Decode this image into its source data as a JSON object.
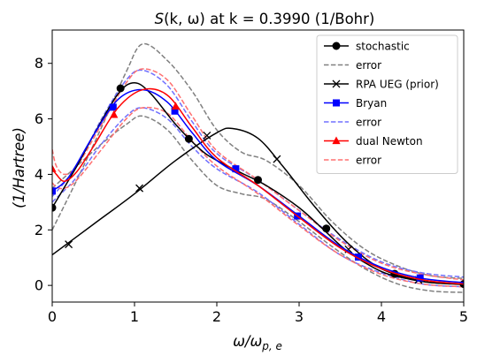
{
  "chart_data": {
    "type": "line",
    "title": "S(k, ω) at k = 0.3990 (1/Bohr)",
    "title_parts": {
      "s": "S",
      "args": "(k, ω)",
      "rest": " at k = 0.3990 (1/Bohr)"
    },
    "xlabel_parts": {
      "omega": "ω",
      "slash": "/ω",
      "sub": "p, e"
    },
    "ylabel": "(1/Hartree)",
    "xlim": [
      0,
      5
    ],
    "ylim": [
      -0.6,
      9.2
    ],
    "xticks": [
      "0",
      "1",
      "2",
      "3",
      "4",
      "5"
    ],
    "yticks": [
      "0",
      "2",
      "4",
      "6",
      "8"
    ],
    "legend_position": "top-right",
    "grid": false,
    "series": [
      {
        "name": "stochastic",
        "color": "#000000",
        "style": "solid",
        "marker": "circle",
        "x": [
          0,
          0.3,
          0.5,
          0.8,
          1.0,
          1.2,
          1.5,
          1.8,
          2.0,
          2.3,
          2.6,
          3.0,
          3.3,
          3.6,
          4.0,
          4.3,
          4.6,
          5.0
        ],
        "y": [
          2.8,
          4.3,
          5.4,
          6.9,
          7.3,
          6.9,
          5.8,
          4.9,
          4.5,
          4.05,
          3.6,
          2.8,
          2.0,
          1.2,
          0.5,
          0.25,
          0.1,
          0.05
        ],
        "markers_x": [
          0,
          0.83,
          1.66,
          2.5,
          3.33,
          4.16,
          5.0
        ],
        "markers_y": [
          2.8,
          7.1,
          5.28,
          3.8,
          2.05,
          0.42,
          0.05
        ]
      },
      {
        "name": "error",
        "color": "#808080",
        "style": "dashed",
        "marker": "none",
        "x": [
          0,
          0.3,
          0.6,
          0.9,
          1.1,
          1.4,
          1.7,
          2.0,
          2.3,
          2.6,
          3.0,
          3.4,
          3.8,
          4.2,
          4.6,
          5.0
        ],
        "y": [
          2.0,
          3.8,
          5.7,
          7.7,
          8.7,
          8.1,
          7.0,
          5.6,
          4.8,
          4.5,
          3.6,
          2.3,
          1.3,
          0.7,
          0.35,
          0.25
        ]
      },
      {
        "name": "",
        "color": "#808080",
        "style": "dashed",
        "marker": "none",
        "x": [
          0,
          0.3,
          0.6,
          0.9,
          1.1,
          1.4,
          1.7,
          2.0,
          2.3,
          2.6,
          3.0,
          3.4,
          3.8,
          4.2,
          4.6,
          5.0
        ],
        "y": [
          3.5,
          4.3,
          5.1,
          5.8,
          6.1,
          5.6,
          4.5,
          3.6,
          3.3,
          3.1,
          2.3,
          1.4,
          0.6,
          0.05,
          -0.2,
          -0.25
        ]
      },
      {
        "name": "RPA UEG (prior)",
        "color": "#000000",
        "style": "solid",
        "marker": "x",
        "x": [
          0,
          0.5,
          1.0,
          1.5,
          2.0,
          2.2,
          2.5,
          2.8,
          3.2,
          3.6,
          4.0,
          4.5,
          5.0
        ],
        "y": [
          1.1,
          2.2,
          3.3,
          4.5,
          5.5,
          5.65,
          5.3,
          4.3,
          2.8,
          1.5,
          0.6,
          0.15,
          0.03
        ],
        "markers_x": [
          0.2,
          1.06,
          1.88,
          2.73,
          3.6,
          4.45
        ],
        "markers_y": [
          1.48,
          3.5,
          5.4,
          4.55,
          1.3,
          0.2
        ]
      },
      {
        "name": "Bryan",
        "color": "#0000ff",
        "style": "solid",
        "marker": "square",
        "x": [
          0,
          0.2,
          0.5,
          0.8,
          1.1,
          1.4,
          1.7,
          2.0,
          2.5,
          3.0,
          3.5,
          4.0,
          4.5,
          5.0
        ],
        "y": [
          3.4,
          3.9,
          5.4,
          6.7,
          7.05,
          6.6,
          5.5,
          4.5,
          3.6,
          2.5,
          1.4,
          0.65,
          0.25,
          0.1
        ],
        "markers_x": [
          0,
          0.74,
          1.49,
          2.23,
          2.98,
          3.72,
          4.47
        ],
        "markers_y": [
          3.4,
          6.42,
          6.28,
          4.2,
          2.5,
          1.02,
          0.27
        ]
      },
      {
        "name": "error",
        "color": "#7070ff",
        "style": "dashed",
        "marker": "none",
        "x": [
          0,
          0.3,
          0.6,
          0.9,
          1.1,
          1.4,
          1.7,
          2.0,
          2.5,
          3.0,
          3.5,
          4.0,
          4.5,
          5.0
        ],
        "y": [
          3.2,
          4.3,
          6.0,
          7.4,
          7.75,
          7.2,
          5.9,
          4.75,
          3.8,
          2.7,
          1.65,
          0.85,
          0.45,
          0.3
        ]
      },
      {
        "name": "",
        "color": "#7070ff",
        "style": "dashed",
        "marker": "none",
        "x": [
          0,
          0.3,
          0.6,
          0.9,
          1.1,
          1.4,
          1.7,
          2.0,
          2.5,
          3.0,
          3.5,
          4.0,
          4.5,
          5.0
        ],
        "y": [
          3.0,
          3.9,
          5.1,
          6.1,
          6.4,
          6.0,
          5.0,
          4.2,
          3.35,
          2.2,
          1.1,
          0.45,
          0.05,
          -0.05
        ]
      },
      {
        "name": "dual Newton",
        "color": "#ff0000",
        "style": "solid",
        "marker": "triangle",
        "x": [
          0,
          0.05,
          0.15,
          0.3,
          0.5,
          0.8,
          1.1,
          1.4,
          1.7,
          2.0,
          2.5,
          3.0,
          3.5,
          4.0,
          4.5,
          5.0
        ],
        "y": [
          4.2,
          4.0,
          3.75,
          4.1,
          5.0,
          6.4,
          7.05,
          6.85,
          5.7,
          4.6,
          3.6,
          2.45,
          1.35,
          0.6,
          0.2,
          0.05
        ],
        "markers_x": [
          0,
          0.75,
          1.5
        ],
        "markers_y": [
          4.2,
          6.15,
          6.45
        ]
      },
      {
        "name": "error",
        "color": "#ff7070",
        "style": "dashed",
        "marker": "none",
        "x": [
          0,
          0.05,
          0.15,
          0.3,
          0.6,
          0.9,
          1.1,
          1.4,
          1.7,
          2.0,
          2.5,
          3.0,
          3.5,
          4.0,
          4.5,
          5.0
        ],
        "y": [
          4.9,
          4.3,
          4.0,
          4.3,
          5.8,
          7.3,
          7.8,
          7.4,
          6.1,
          4.85,
          3.8,
          2.7,
          1.6,
          0.8,
          0.4,
          0.2
        ]
      },
      {
        "name": "",
        "color": "#ff7070",
        "style": "dashed",
        "marker": "none",
        "x": [
          0,
          0.05,
          0.15,
          0.3,
          0.6,
          0.9,
          1.1,
          1.4,
          1.7,
          2.0,
          2.5,
          3.0,
          3.5,
          4.0,
          4.5,
          5.0
        ],
        "y": [
          3.7,
          3.55,
          3.5,
          3.8,
          4.9,
          6.0,
          6.4,
          6.2,
          5.2,
          4.3,
          3.3,
          2.15,
          1.1,
          0.4,
          0.05,
          -0.05
        ]
      }
    ]
  }
}
